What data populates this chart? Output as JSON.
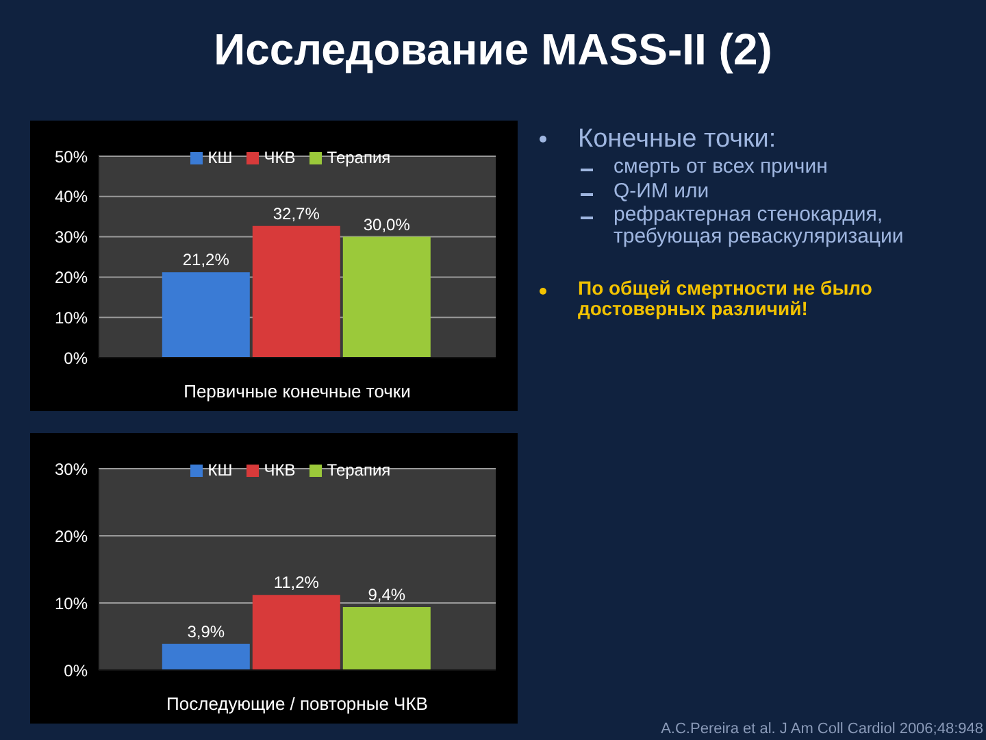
{
  "chart_data": [
    {
      "type": "other",
      "title": "Исследование MASS-II (2)",
      "annotations": [
        "Конечные точки:",
        "смерть от всех причин",
        "Q-ИМ или",
        "рефрактерная стенокардия, требующая реваскуляризации",
        "По общей смертности не было достоверных различий!"
      ]
    },
    {
      "type": "bar",
      "categories": [
        "Первичные конечные точки"
      ],
      "legend": "top",
      "grid": "y",
      "ylim": [
        0,
        50
      ],
      "yticks": [
        {
          "value": 0,
          "label": "0%"
        },
        {
          "value": 10,
          "label": "10%"
        },
        {
          "value": 20,
          "label": "20%"
        },
        {
          "value": 30,
          "label": "30%"
        },
        {
          "value": 40,
          "label": "40%"
        },
        {
          "value": 50,
          "label": "50%"
        }
      ],
      "series": [
        {
          "name": "КШ",
          "color": "#3a7bd5",
          "values": [
            21.2
          ],
          "value_labels": [
            "21,2%"
          ]
        },
        {
          "name": "ЧКВ",
          "color": "#d83a3a",
          "values": [
            32.7
          ],
          "value_labels": [
            "32,7%"
          ]
        },
        {
          "name": "Терапия",
          "color": "#9bc93a",
          "values": [
            30.0
          ],
          "value_labels": [
            "30,0%"
          ]
        }
      ]
    },
    {
      "type": "bar",
      "categories": [
        "Последующие / повторные ЧКВ"
      ],
      "legend": "top",
      "grid": "y",
      "ylim": [
        0,
        30
      ],
      "yticks": [
        {
          "value": 0,
          "label": "0%"
        },
        {
          "value": 10,
          "label": "10%"
        },
        {
          "value": 20,
          "label": "20%"
        },
        {
          "value": 30,
          "label": "30%"
        }
      ],
      "annotations": [
        "A.C.Pereira et al. J Am Coll Cardiol 2006;48:948"
      ],
      "series": [
        {
          "name": "КШ",
          "color": "#3a7bd5",
          "values": [
            3.9
          ],
          "value_labels": [
            "3,9%"
          ]
        },
        {
          "name": "ЧКВ",
          "color": "#d83a3a",
          "values": [
            11.2
          ],
          "value_labels": [
            "11,2%"
          ]
        },
        {
          "name": "Терапия",
          "color": "#9bc93a",
          "values": [
            9.4
          ],
          "value_labels": [
            "9,4%"
          ]
        }
      ]
    }
  ]
}
